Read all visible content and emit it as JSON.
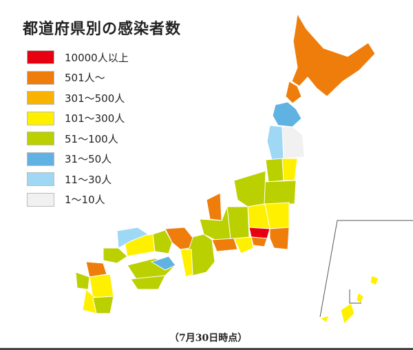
{
  "title": "都道府県別の感染者数",
  "legend": [
    {
      "label": "10000人以上",
      "color": "#e60012"
    },
    {
      "label": "501人～",
      "color": "#ef7d0b"
    },
    {
      "label": "301～500人",
      "color": "#f8b300"
    },
    {
      "label": "101～300人",
      "color": "#fff000"
    },
    {
      "label": "51～100人",
      "color": "#bad000"
    },
    {
      "label": "31～50人",
      "color": "#5fb2e2"
    },
    {
      "label": "11～30人",
      "color": "#9fd8f5"
    },
    {
      "label": "1～10人",
      "color": "#f1f1f1"
    }
  ],
  "note": "（7月30日時点）"
}
